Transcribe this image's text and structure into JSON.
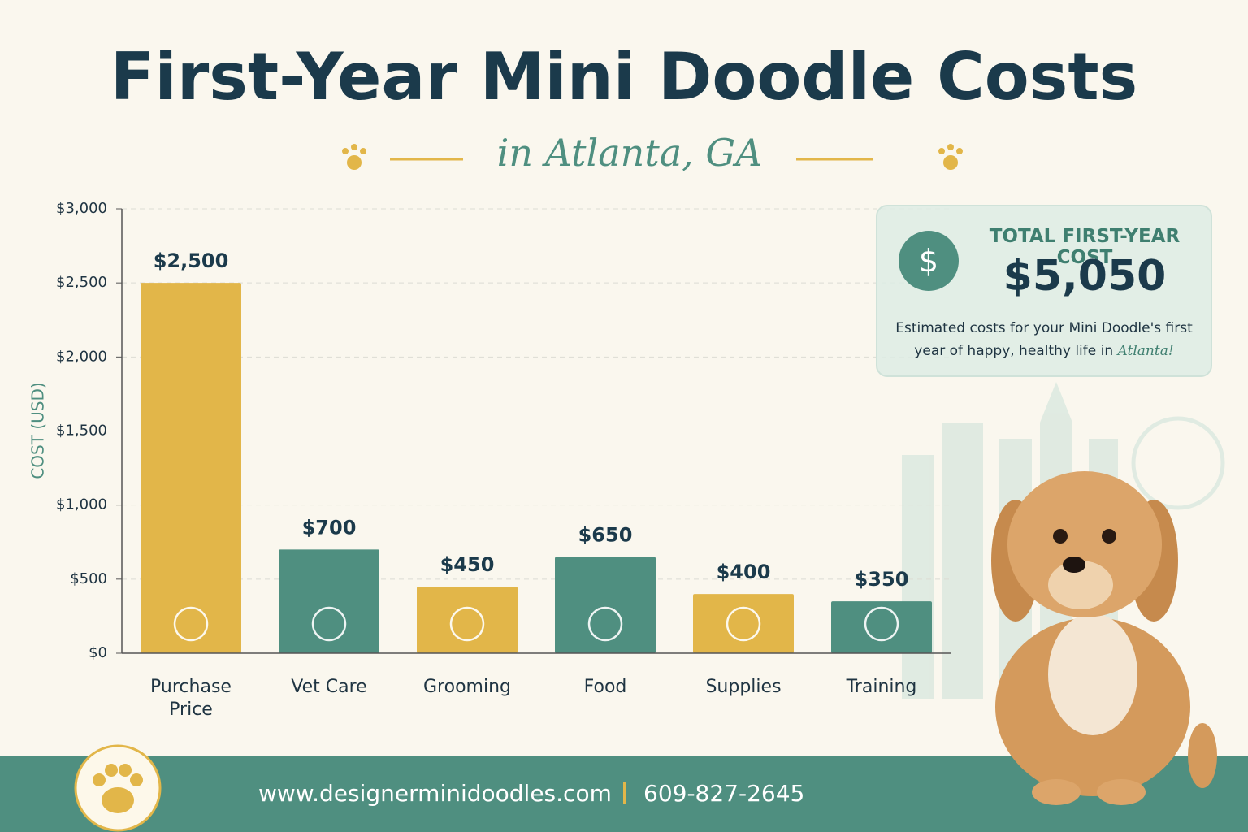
{
  "chart_data": {
    "type": "bar",
    "title": "First-Year Mini Doodle Costs",
    "subtitle": "in Atlanta, GA",
    "y_label": "COST (USD)",
    "categories": [
      "Purchase Price",
      "Vet Care",
      "Grooming",
      "Food",
      "Supplies",
      "Training"
    ],
    "values": [
      2500,
      700,
      450,
      650,
      400,
      350
    ],
    "value_labels": [
      "$2,500",
      "$700",
      "$450",
      "$650",
      "$400",
      "$350"
    ],
    "colors": [
      "#e2b649",
      "#4f8f80",
      "#e2b649",
      "#4f8f80",
      "#e2b649",
      "#4f8f80"
    ],
    "ylim": [
      0,
      3000
    ],
    "yticks": [
      {
        "value": 0,
        "label": "$0"
      },
      {
        "value": 500,
        "label": "$500"
      },
      {
        "value": 1000,
        "label": "$1,000"
      },
      {
        "value": 1500,
        "label": "$1,500"
      },
      {
        "value": 2000,
        "label": "$2,000"
      },
      {
        "value": 2500,
        "label": "$2,500"
      },
      {
        "value": 3000,
        "label": "$3,000"
      }
    ],
    "grid": true
  },
  "callout": {
    "icon": "$",
    "heading": "TOTAL FIRST-YEAR COST",
    "total": "$5,050",
    "text": "Estimated costs for your Mini Doodle's first year of happy, healthy life in",
    "highlight": "Atlanta!"
  },
  "footer": {
    "website": "www.designerminidoodles.com",
    "phone": "609-827-2645"
  }
}
